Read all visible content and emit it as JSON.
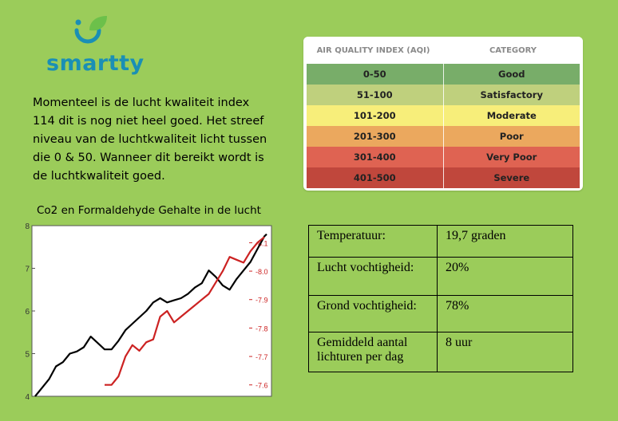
{
  "brand": {
    "name": "smartty",
    "icon": "smiley-leaf-icon",
    "colors": {
      "blue": "#1a8fb5",
      "green": "#6cc04a"
    }
  },
  "intro": "Momenteel is de lucht kwaliteit index 114 dit is nog niet heel goed. Het streef niveau van de luchtkwaliteit licht tussen die 0 & 50. Wanneer dit bereikt wordt is de luchtkwaliteit goed.",
  "aqi_table": {
    "headers": [
      "AIR QUALITY INDEX (AQI)",
      "CATEGORY"
    ],
    "rows": [
      {
        "range": "0-50",
        "category": "Good",
        "color": "#78ad69"
      },
      {
        "range": "51-100",
        "category": "Satisfactory",
        "color": "#bfd07d"
      },
      {
        "range": "101-200",
        "category": "Moderate",
        "color": "#f7ee7a"
      },
      {
        "range": "201-300",
        "category": "Poor",
        "color": "#eba85e"
      },
      {
        "range": "301-400",
        "category": "Very Poor",
        "color": "#df6352"
      },
      {
        "range": "401-500",
        "category": "Severe",
        "color": "#c0473c"
      }
    ]
  },
  "chart_title": "Co2 en Formaldehyde Gehalte in de lucht",
  "chart_data": {
    "type": "line",
    "title": "",
    "xlabel": "",
    "ylabel": "",
    "y_left": {
      "ticks": [
        "8",
        "7",
        "6",
        "5",
        "4"
      ],
      "ylim": [
        4,
        8
      ]
    },
    "y_right": {
      "ticks": [
        "-8.1",
        "-8.0",
        "-7.9",
        "-7.8",
        "-7.7",
        "-7.6"
      ],
      "ylim": [
        -7.56,
        -8.16
      ],
      "color": "#cc2222"
    },
    "series": [
      {
        "color": "#000000",
        "axis": "left",
        "x": [
          0,
          3,
          6,
          9,
          12,
          15,
          18,
          21,
          24,
          27,
          30,
          33,
          36,
          39,
          42,
          45,
          48,
          51,
          54,
          57,
          60,
          63,
          66,
          69,
          72,
          75,
          78,
          81,
          84,
          87,
          90,
          93,
          96,
          99,
          100
        ],
        "values": [
          4.0,
          4.2,
          4.4,
          4.7,
          4.8,
          5.0,
          5.05,
          5.15,
          5.4,
          5.25,
          5.1,
          5.1,
          5.3,
          5.55,
          5.7,
          5.85,
          6.0,
          6.2,
          6.3,
          6.2,
          6.25,
          6.3,
          6.4,
          6.55,
          6.65,
          6.95,
          6.8,
          6.6,
          6.5,
          6.75,
          6.95,
          7.15,
          7.45,
          7.75,
          7.8
        ]
      },
      {
        "color": "#cc2222",
        "axis": "right",
        "x": [
          30,
          33,
          36,
          39,
          42,
          45,
          48,
          51,
          54,
          57,
          60,
          63,
          66,
          69,
          72,
          75,
          78,
          81,
          84,
          87,
          90,
          93,
          96,
          99
        ],
        "values": [
          -7.6,
          -7.6,
          -7.63,
          -7.7,
          -7.74,
          -7.72,
          -7.75,
          -7.76,
          -7.84,
          -7.86,
          -7.82,
          -7.84,
          -7.86,
          -7.88,
          -7.9,
          -7.92,
          -7.96,
          -8.0,
          -8.05,
          -8.04,
          -8.03,
          -8.07,
          -8.1,
          -8.12
        ]
      }
    ],
    "grid": false
  },
  "info_table": [
    {
      "label": "Temperatuur:",
      "value": "19,7 graden"
    },
    {
      "label": "Lucht vochtigheid:",
      "value": "20%"
    },
    {
      "label": "Grond vochtigheid:",
      "value": "78%"
    },
    {
      "label": "Gemiddeld aantal lichturen per dag",
      "value": "8 uur"
    }
  ]
}
